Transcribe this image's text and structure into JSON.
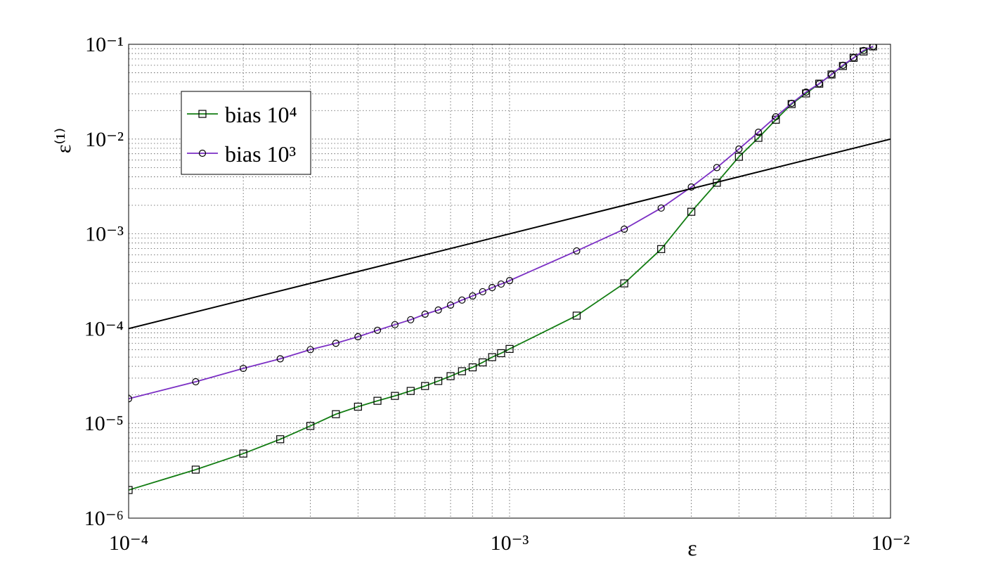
{
  "chart_data": {
    "type": "line",
    "xlabel": "ε",
    "ylabel": "ε⁽¹⁾",
    "xscale": "log",
    "yscale": "log",
    "grid": true,
    "legend": "upper left",
    "xlim": [
      0.0001,
      0.01
    ],
    "ylim": [
      1e-06,
      0.1
    ],
    "xticks": [
      {
        "value": 0.0001,
        "label": "10⁻⁴"
      },
      {
        "value": 0.001,
        "label": "10⁻³"
      },
      {
        "value": 0.01,
        "label": "10⁻²"
      }
    ],
    "yticks": [
      {
        "value": 1e-06,
        "label": "10⁻⁶"
      },
      {
        "value": 1e-05,
        "label": "10⁻⁵"
      },
      {
        "value": 0.0001,
        "label": "10⁻⁴"
      },
      {
        "value": 0.001,
        "label": "10⁻³"
      },
      {
        "value": 0.01,
        "label": "10⁻²"
      },
      {
        "value": 0.1,
        "label": "10⁻¹"
      }
    ],
    "xminorticks": [
      0.0002,
      0.0003,
      0.0004,
      0.0005,
      0.0006,
      0.0007,
      0.0008,
      0.0009,
      0.002,
      0.003,
      0.004,
      0.005,
      0.006,
      0.007,
      0.008,
      0.009
    ],
    "yminorticks": [
      2e-06,
      3e-06,
      4e-06,
      5e-06,
      6e-06,
      7e-06,
      8e-06,
      9e-06,
      2e-05,
      3e-05,
      4e-05,
      5e-05,
      6e-05,
      7e-05,
      8e-05,
      9e-05,
      0.0002,
      0.0003,
      0.0004,
      0.0005,
      0.0006,
      0.0007,
      0.0008,
      0.0009,
      0.002,
      0.003,
      0.004,
      0.005,
      0.006,
      0.007,
      0.008,
      0.009,
      0.02,
      0.03,
      0.04,
      0.05,
      0.06,
      0.07,
      0.08,
      0.09
    ],
    "series": [
      {
        "name": "bias 10⁴",
        "color": "#137d13",
        "marker": "square",
        "x": [
          0.0001,
          0.00015,
          0.0002,
          0.00025,
          0.0003,
          0.00035,
          0.0004,
          0.00045,
          0.0005,
          0.00055,
          0.0006,
          0.00065,
          0.0007,
          0.00075,
          0.0008,
          0.00085,
          0.0009,
          0.00095,
          0.001,
          0.0015,
          0.002,
          0.0025,
          0.003,
          0.0035,
          0.004,
          0.0045,
          0.005,
          0.0055,
          0.006,
          0.0065,
          0.007,
          0.0075,
          0.008,
          0.0085,
          0.009
        ],
        "values": [
          1.98e-06,
          3.25e-06,
          4.8e-06,
          6.8e-06,
          9.4e-06,
          1.25e-05,
          1.5e-05,
          1.73e-05,
          1.95e-05,
          2.2e-05,
          2.48e-05,
          2.8e-05,
          3.15e-05,
          3.55e-05,
          3.9e-05,
          4.4e-05,
          5e-05,
          5.5e-05,
          6.1e-05,
          0.000137,
          0.0003,
          0.00069,
          0.00171,
          0.00346,
          0.0065,
          0.0103,
          0.016,
          0.0234,
          0.0303,
          0.0384,
          0.048,
          0.059,
          0.072,
          0.084,
          0.095
        ]
      },
      {
        "name": "bias 10³",
        "color": "#7b2fc4",
        "marker": "circle",
        "x": [
          0.0001,
          0.00015,
          0.0002,
          0.00025,
          0.0003,
          0.00035,
          0.0004,
          0.00045,
          0.0005,
          0.00055,
          0.0006,
          0.00065,
          0.0007,
          0.00075,
          0.0008,
          0.00085,
          0.0009,
          0.00095,
          0.001,
          0.0015,
          0.002,
          0.0025,
          0.003,
          0.0035,
          0.004,
          0.0045,
          0.005,
          0.0055,
          0.006,
          0.0065,
          0.007,
          0.0075,
          0.008,
          0.0085,
          0.009
        ],
        "values": [
          1.82e-05,
          2.75e-05,
          3.8e-05,
          4.8e-05,
          6e-05,
          7e-05,
          8.2e-05,
          9.6e-05,
          0.00011,
          0.000124,
          0.000142,
          0.000157,
          0.000177,
          0.0002,
          0.000221,
          0.000245,
          0.000271,
          0.000295,
          0.000321,
          0.00066,
          0.00112,
          0.00187,
          0.00312,
          0.005,
          0.00785,
          0.0118,
          0.0172,
          0.0238,
          0.0313,
          0.0384,
          0.048,
          0.06,
          0.072,
          0.086,
          0.095
        ]
      },
      {
        "color": "#000000",
        "marker": "none",
        "x": [
          0.0001,
          0.01
        ],
        "values": [
          0.0001,
          0.01
        ]
      }
    ]
  }
}
